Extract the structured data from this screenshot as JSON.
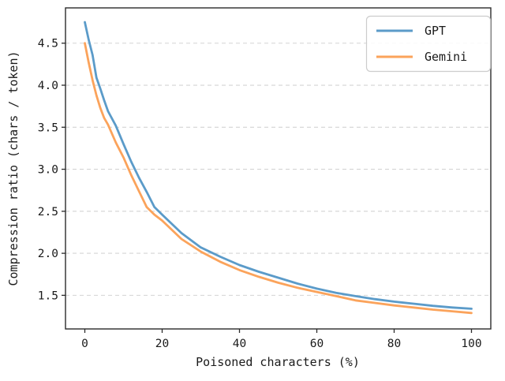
{
  "chart_data": {
    "type": "line",
    "title": "",
    "xlabel": "Poisoned characters (%)",
    "ylabel": "Compression ratio (chars / token)",
    "xlim": [
      -5,
      105
    ],
    "ylim": [
      1.1,
      4.92
    ],
    "xticks": [
      0,
      20,
      40,
      60,
      80,
      100
    ],
    "yticks": [
      1.5,
      2.0,
      2.5,
      3.0,
      3.5,
      4.0,
      4.5
    ],
    "grid": "horizontal-dashed",
    "grid_color": "#d4d4d4",
    "spine_color": "#2b2b2b",
    "legend_position": "upper right",
    "x": [
      0,
      1,
      2,
      3,
      4,
      5,
      6,
      8,
      10,
      12,
      14,
      16,
      18,
      20,
      25,
      30,
      35,
      40,
      45,
      50,
      55,
      60,
      65,
      70,
      75,
      80,
      85,
      90,
      95,
      100
    ],
    "series": [
      {
        "name": "GPT",
        "color": "#5b9bc9",
        "values": [
          4.75,
          4.54,
          4.36,
          4.09,
          3.96,
          3.82,
          3.69,
          3.52,
          3.3,
          3.09,
          2.9,
          2.73,
          2.55,
          2.46,
          2.24,
          2.07,
          1.96,
          1.86,
          1.78,
          1.71,
          1.64,
          1.58,
          1.53,
          1.49,
          1.455,
          1.425,
          1.4,
          1.375,
          1.355,
          1.34
        ]
      },
      {
        "name": "Gemini",
        "color": "#fba35b",
        "values": [
          4.5,
          4.27,
          4.06,
          3.88,
          3.73,
          3.61,
          3.53,
          3.32,
          3.14,
          2.93,
          2.74,
          2.55,
          2.46,
          2.39,
          2.17,
          2.02,
          1.9,
          1.8,
          1.72,
          1.65,
          1.59,
          1.54,
          1.49,
          1.44,
          1.41,
          1.38,
          1.355,
          1.33,
          1.31,
          1.29
        ]
      }
    ]
  }
}
